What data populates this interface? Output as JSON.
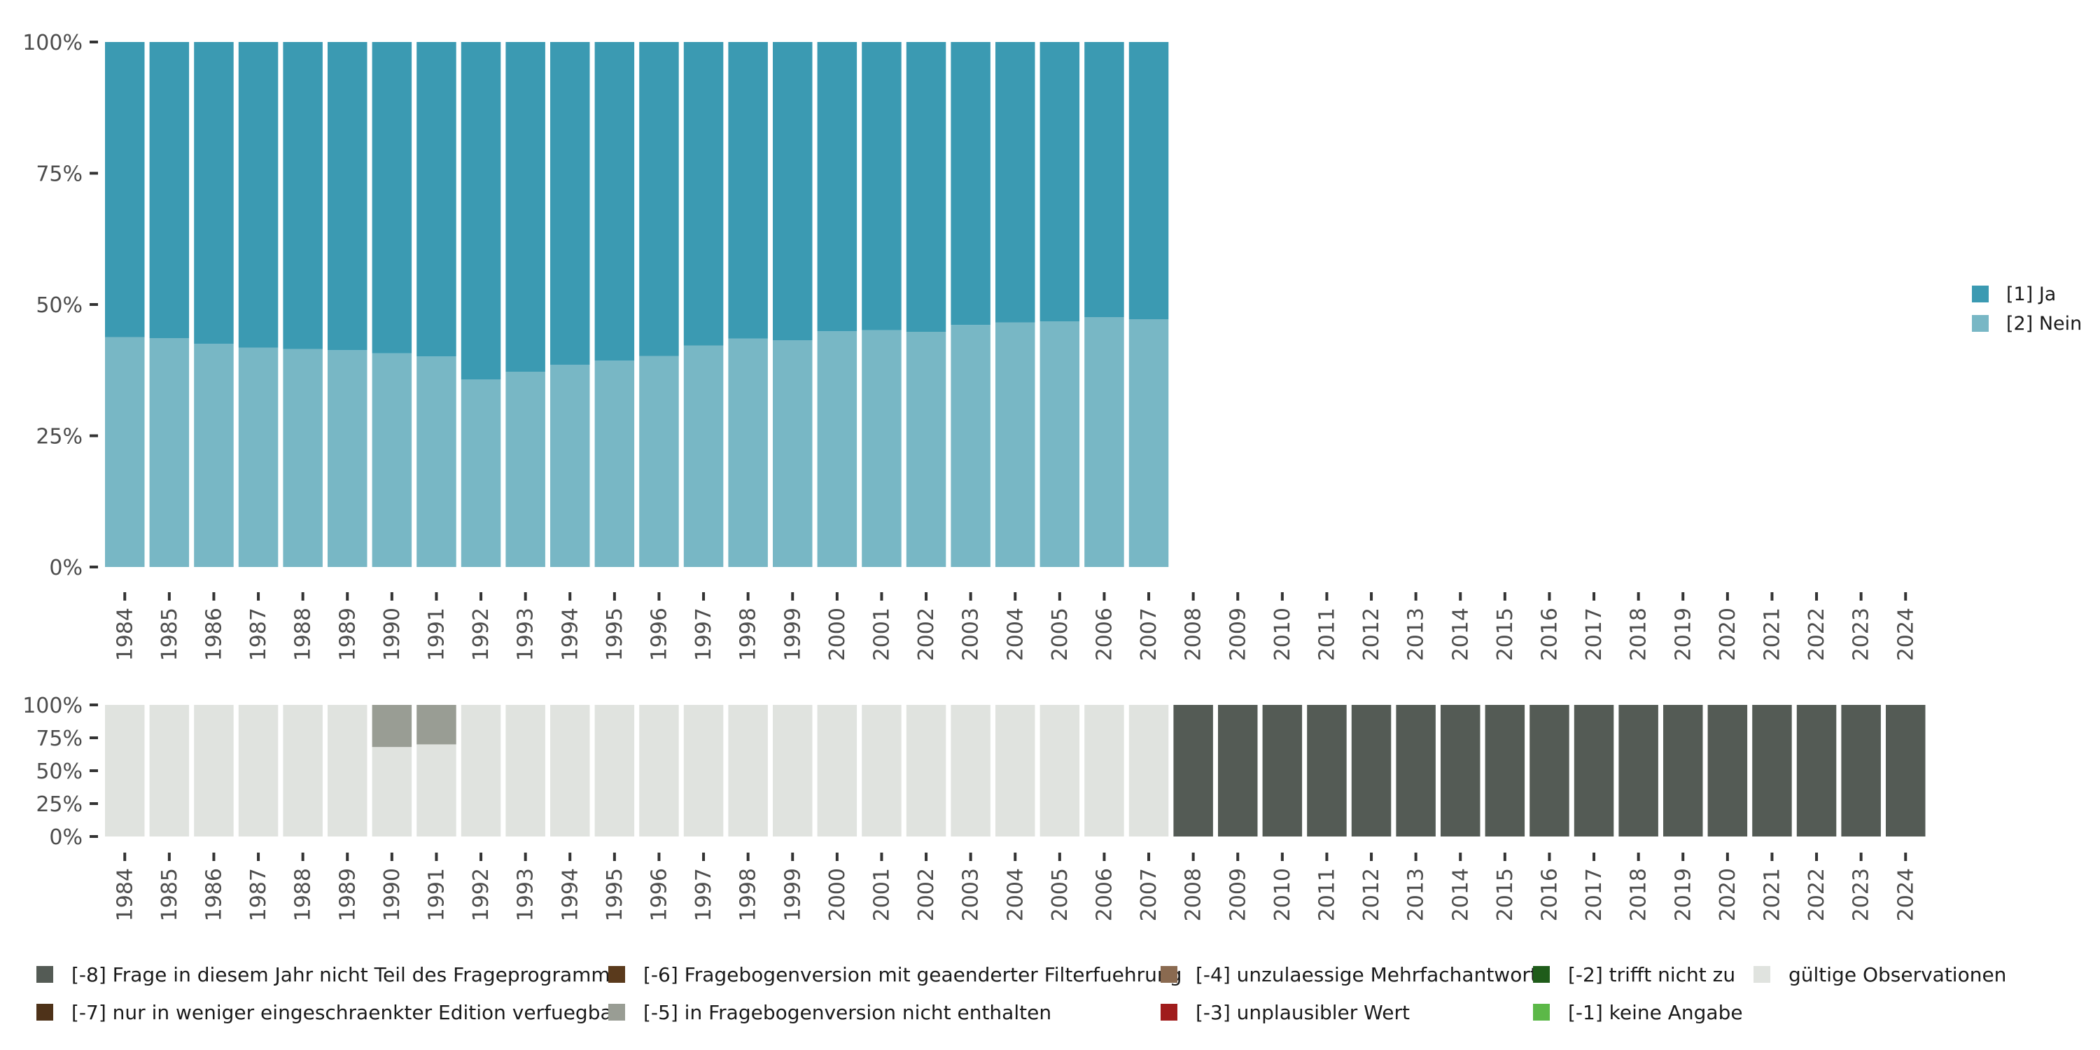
{
  "chart_data": [
    {
      "type": "bar",
      "stacked": true,
      "title": "",
      "xlabel": "",
      "ylabel": "",
      "ylim": [
        0,
        1
      ],
      "y_ticks": [
        "0%",
        "25%",
        "50%",
        "75%",
        "100%"
      ],
      "categories": [
        "1984",
        "1985",
        "1986",
        "1987",
        "1988",
        "1989",
        "1990",
        "1991",
        "1992",
        "1993",
        "1994",
        "1995",
        "1996",
        "1997",
        "1998",
        "1999",
        "2000",
        "2001",
        "2002",
        "2003",
        "2004",
        "2005",
        "2006",
        "2007",
        "2008",
        "2009",
        "2010",
        "2011",
        "2012",
        "2013",
        "2014",
        "2015",
        "2016",
        "2017",
        "2018",
        "2019",
        "2020",
        "2021",
        "2022",
        "2023",
        "2024"
      ],
      "legend_position": "right",
      "series": [
        {
          "name": "[2] Nein",
          "color": "#78b7c5",
          "values": [
            0.438,
            0.436,
            0.425,
            0.418,
            0.415,
            0.413,
            0.407,
            0.401,
            0.357,
            0.372,
            0.385,
            0.393,
            0.402,
            0.422,
            0.435,
            0.432,
            0.449,
            0.451,
            0.448,
            0.461,
            0.466,
            0.468,
            0.476,
            0.472,
            null,
            null,
            null,
            null,
            null,
            null,
            null,
            null,
            null,
            null,
            null,
            null,
            null,
            null,
            null,
            null,
            null
          ]
        },
        {
          "name": "[1] Ja",
          "color": "#3b9ab2",
          "values": [
            0.562,
            0.564,
            0.575,
            0.582,
            0.585,
            0.587,
            0.593,
            0.599,
            0.643,
            0.628,
            0.615,
            0.607,
            0.598,
            0.578,
            0.565,
            0.568,
            0.551,
            0.549,
            0.552,
            0.539,
            0.534,
            0.532,
            0.524,
            0.528,
            null,
            null,
            null,
            null,
            null,
            null,
            null,
            null,
            null,
            null,
            null,
            null,
            null,
            null,
            null,
            null,
            null
          ]
        }
      ]
    },
    {
      "type": "bar",
      "stacked": true,
      "title": "",
      "xlabel": "",
      "ylabel": "",
      "ylim": [
        0,
        1
      ],
      "y_ticks": [
        "0%",
        "25%",
        "50%",
        "75%",
        "100%"
      ],
      "categories": [
        "1984",
        "1985",
        "1986",
        "1987",
        "1988",
        "1989",
        "1990",
        "1991",
        "1992",
        "1993",
        "1994",
        "1995",
        "1996",
        "1997",
        "1998",
        "1999",
        "2000",
        "2001",
        "2002",
        "2003",
        "2004",
        "2005",
        "2006",
        "2007",
        "2008",
        "2009",
        "2010",
        "2011",
        "2012",
        "2013",
        "2014",
        "2015",
        "2016",
        "2017",
        "2018",
        "2019",
        "2020",
        "2021",
        "2022",
        "2023",
        "2024"
      ],
      "legend_position": "bottom",
      "series": [
        {
          "name": "gültige Observationen",
          "color": "#e0e3df",
          "values": [
            1,
            1,
            1,
            1,
            1,
            1,
            0.68,
            0.7,
            1,
            1,
            1,
            1,
            1,
            1,
            1,
            1,
            1,
            1,
            1,
            1,
            1,
            1,
            1,
            1,
            0,
            0,
            0,
            0,
            0,
            0,
            0,
            0,
            0,
            0,
            0,
            0,
            0,
            0,
            0,
            0,
            0
          ]
        },
        {
          "name": "[-5] in Fragebogenversion nicht enthalten",
          "color": "#999d94",
          "values": [
            0,
            0,
            0,
            0,
            0,
            0,
            0.32,
            0.3,
            0,
            0,
            0,
            0,
            0,
            0,
            0,
            0,
            0,
            0,
            0,
            0,
            0,
            0,
            0,
            0,
            0,
            0,
            0,
            0,
            0,
            0,
            0,
            0,
            0,
            0,
            0,
            0,
            0,
            0,
            0,
            0,
            0
          ]
        },
        {
          "name": "[-8] Frage in diesem Jahr nicht Teil des Frageprogramms",
          "color": "#545b55",
          "values": [
            0,
            0,
            0,
            0,
            0,
            0,
            0,
            0,
            0,
            0,
            0,
            0,
            0,
            0,
            0,
            0,
            0,
            0,
            0,
            0,
            0,
            0,
            0,
            0,
            1,
            1,
            1,
            1,
            1,
            1,
            1,
            1,
            1,
            1,
            1,
            1,
            1,
            1,
            1,
            1,
            1
          ]
        }
      ],
      "legend_entries": [
        {
          "name": "[-8] Frage in diesem Jahr nicht Teil des Frageprogramms",
          "color": "#545b55"
        },
        {
          "name": "[-7] nur in weniger eingeschraenkter Edition verfuegbar",
          "color": "#4e3219"
        },
        {
          "name": "[-6] Fragebogenversion mit geaenderter Filterfuehrung",
          "color": "#5a3a1c"
        },
        {
          "name": "[-5] in Fragebogenversion nicht enthalten",
          "color": "#999d94"
        },
        {
          "name": "[-4] unzulaessige Mehrfachantwort",
          "color": "#8a6a50"
        },
        {
          "name": "[-3] unplausibler Wert",
          "color": "#a01c1c"
        },
        {
          "name": "[-2] trifft nicht zu",
          "color": "#1f5c1a"
        },
        {
          "name": "[-1] keine Angabe",
          "color": "#5cb848"
        },
        {
          "name": "gültige Observationen",
          "color": "#e0e3df"
        }
      ]
    }
  ]
}
